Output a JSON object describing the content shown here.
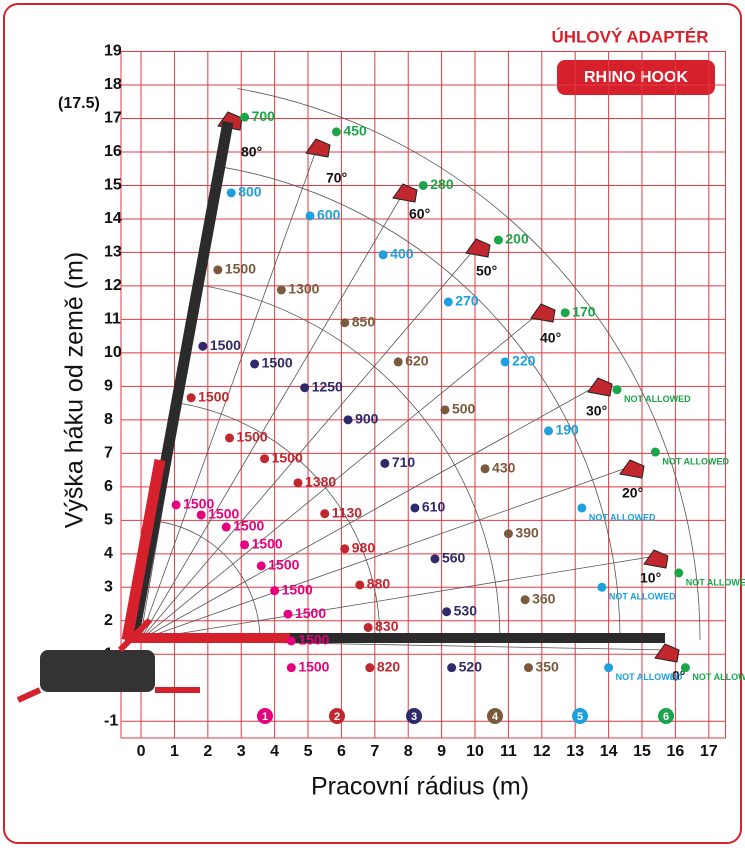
{
  "chart_data": {
    "type": "scatter",
    "title": "ÚHLOVÝ ADAPTÉR",
    "subtitle": "RHINO HOOK",
    "x_label": "Pracovní rádius (m)",
    "y_label": "Výška háku od země (m)",
    "xlim": [
      -0.6,
      17.5
    ],
    "ylim": [
      -1.5,
      19
    ],
    "xticks": [
      0,
      1,
      2,
      3,
      4,
      5,
      6,
      7,
      8,
      9,
      10,
      11,
      12,
      13,
      14,
      15,
      16,
      17
    ],
    "yticks": [
      -1,
      1,
      2,
      3,
      4,
      5,
      6,
      7,
      8,
      9,
      10,
      11,
      12,
      13,
      14,
      15,
      16,
      17,
      18,
      19
    ],
    "max_height_label": {
      "value": 17.5,
      "label": "(17.5)"
    },
    "grid": true,
    "boom_angles": [
      "80°",
      "70°",
      "60°",
      "50°",
      "40°",
      "30°",
      "20°",
      "10°",
      "0°"
    ],
    "series": [
      {
        "name": "1",
        "color": "#e6007e",
        "x": [
          1.05,
          1.8,
          2.55,
          3.1,
          3.6,
          4.0,
          4.4,
          4.5,
          4.5
        ],
        "values": [
          5.46,
          5.16,
          4.8,
          4.27,
          3.64,
          2.9,
          2.2,
          1.4,
          0.6
        ],
        "labels": [
          "1500",
          "1500",
          "1500",
          "1500",
          "1500",
          "1500",
          "1500",
          "1500",
          "1500"
        ]
      },
      {
        "name": "2",
        "color": "#c1272d",
        "x": [
          1.5,
          2.65,
          3.7,
          4.7,
          5.5,
          6.1,
          6.55,
          6.8,
          6.85
        ],
        "values": [
          8.66,
          7.46,
          6.84,
          6.12,
          5.2,
          4.15,
          3.07,
          1.8,
          0.6
        ],
        "labels": [
          "1500",
          "1500",
          "1500",
          "1380",
          "1130",
          "980",
          "880",
          "830",
          "820"
        ]
      },
      {
        "name": "3",
        "color": "#2e2a6b",
        "x": [
          1.85,
          3.4,
          4.9,
          6.2,
          7.3,
          8.2,
          8.8,
          9.15,
          9.3
        ],
        "values": [
          10.2,
          9.67,
          8.96,
          8.0,
          6.7,
          5.37,
          3.85,
          2.27,
          0.6
        ],
        "labels": [
          "1500",
          "1500",
          "1250",
          "900",
          "710",
          "610",
          "560",
          "530",
          "520"
        ]
      },
      {
        "name": "4",
        "color": "#7b5a3c",
        "x": [
          2.3,
          4.2,
          6.1,
          7.7,
          9.1,
          10.3,
          11.0,
          11.5,
          11.6
        ],
        "values": [
          12.48,
          11.88,
          10.9,
          9.73,
          8.3,
          6.54,
          4.6,
          2.63,
          0.6
        ],
        "labels": [
          "1500",
          "1300",
          "850",
          "620",
          "500",
          "430",
          "390",
          "360",
          "350"
        ]
      },
      {
        "name": "5",
        "color": "#1ea0dc",
        "x": [
          2.7,
          5.06,
          7.25,
          9.2,
          10.9,
          12.2,
          13.2,
          13.8,
          14.0
        ],
        "values": [
          14.78,
          14.09,
          12.93,
          11.52,
          9.73,
          7.67,
          5.37,
          3.0,
          0.6
        ],
        "labels": [
          "800",
          "600",
          "400",
          "270",
          "220",
          "190",
          "NOT ALLOWED",
          "NOT ALLOWED",
          "NOT ALLOWED"
        ]
      },
      {
        "name": "6",
        "color": "#1aa54a",
        "x": [
          3.1,
          5.85,
          8.45,
          10.7,
          12.7,
          14.25,
          15.4,
          16.1,
          16.3
        ],
        "values": [
          17.04,
          16.6,
          15.0,
          13.37,
          11.2,
          8.9,
          7.04,
          3.43,
          0.6
        ],
        "labels": [
          "700",
          "450",
          "280",
          "200",
          "170",
          "NOT ALLOWED",
          "NOT ALLOWED",
          "NOT ALLOWED",
          "NOT ALLOWED"
        ]
      }
    ]
  }
}
